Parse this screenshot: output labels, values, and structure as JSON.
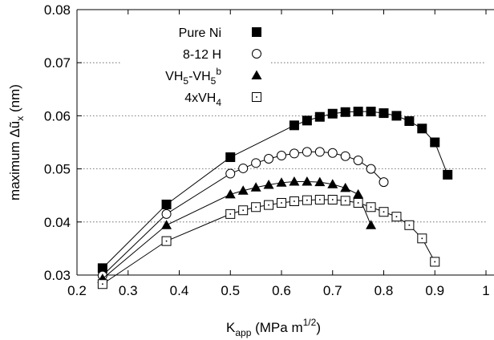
{
  "chart_data": {
    "type": "line",
    "xlabel": {
      "main": "K",
      "sub": "app",
      "rest": " (MPa m",
      "sup": "1/2",
      "end": ")"
    },
    "ylabel": "maximum Δũ",
    "ylabel_sub": "x",
    "ylabel_unit": " (nm)",
    "xlim": [
      0.2,
      1.0
    ],
    "ylim": [
      0.03,
      0.08
    ],
    "x_ticks": [
      0.2,
      0.3,
      0.4,
      0.5,
      0.6,
      0.7,
      0.8,
      0.9,
      1.0
    ],
    "x_tick_labels": [
      "0.2",
      "0.3",
      "0.4",
      "0.5",
      "0.6",
      "0.7",
      "0.8",
      "0.9",
      "1"
    ],
    "y_ticks": [
      0.03,
      0.04,
      0.05,
      0.06,
      0.07,
      0.08
    ],
    "y_tick_labels": [
      "0.03",
      "0.04",
      "0.05",
      "0.06",
      "0.07",
      "0.08"
    ],
    "grid": "horizontal dotted",
    "legend_position": "top-left",
    "series": [
      {
        "name": "Pure Ni",
        "legend": {
          "text": "Pure Ni"
        },
        "marker": "filled-square",
        "x": [
          0.25,
          0.375,
          0.5,
          0.625,
          0.65,
          0.675,
          0.7,
          0.725,
          0.75,
          0.775,
          0.8,
          0.825,
          0.85,
          0.875,
          0.9,
          0.925
        ],
        "y": [
          0.0313,
          0.0433,
          0.0522,
          0.0582,
          0.0591,
          0.0598,
          0.0604,
          0.0607,
          0.0608,
          0.0608,
          0.0605,
          0.06,
          0.059,
          0.0576,
          0.055,
          0.0489
        ]
      },
      {
        "name": "8-12 H",
        "legend": {
          "text": "8-12 H"
        },
        "marker": "open-circle",
        "x": [
          0.25,
          0.375,
          0.5,
          0.525,
          0.55,
          0.575,
          0.6,
          0.625,
          0.65,
          0.675,
          0.7,
          0.725,
          0.75,
          0.775,
          0.8
        ],
        "y": [
          0.0299,
          0.0415,
          0.0491,
          0.0501,
          0.0511,
          0.0519,
          0.0525,
          0.0529,
          0.0532,
          0.0532,
          0.053,
          0.0524,
          0.0516,
          0.05,
          0.0475
        ]
      },
      {
        "name": "VH5-VH5b",
        "legend": {
          "pre": "VH",
          "sub1": "5",
          "mid": "-VH",
          "sub2": "5",
          "sup": "b"
        },
        "marker": "filled-triangle",
        "x": [
          0.25,
          0.375,
          0.5,
          0.525,
          0.55,
          0.575,
          0.6,
          0.625,
          0.65,
          0.675,
          0.7,
          0.725,
          0.75,
          0.775
        ],
        "y": [
          0.0293,
          0.0394,
          0.0452,
          0.0459,
          0.0465,
          0.047,
          0.0474,
          0.0476,
          0.0476,
          0.0475,
          0.0471,
          0.0464,
          0.0452,
          0.0394
        ]
      },
      {
        "name": "4xVH4",
        "legend": {
          "pre": "4xVH",
          "sub1": "4"
        },
        "marker": "open-square-dot",
        "x": [
          0.25,
          0.375,
          0.5,
          0.525,
          0.55,
          0.575,
          0.6,
          0.625,
          0.65,
          0.675,
          0.7,
          0.725,
          0.75,
          0.775,
          0.8,
          0.825,
          0.85,
          0.875,
          0.9
        ],
        "y": [
          0.0283,
          0.0364,
          0.0415,
          0.0422,
          0.0428,
          0.0432,
          0.0436,
          0.0439,
          0.0441,
          0.0442,
          0.0442,
          0.044,
          0.0436,
          0.0428,
          0.0419,
          0.041,
          0.0394,
          0.0369,
          0.0325
        ]
      }
    ]
  }
}
